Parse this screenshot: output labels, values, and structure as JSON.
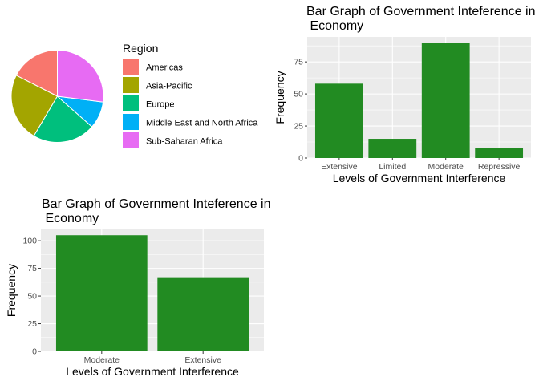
{
  "chart_data": [
    {
      "type": "pie",
      "legend_title": "Region",
      "legend_position": "right",
      "categories": [
        "Americas",
        "Asia-Pacific",
        "Europe",
        "Middle East and North Africa",
        "Sub-Saharan Africa"
      ],
      "values": [
        35,
        48,
        44,
        19,
        54
      ],
      "colors": [
        "#F8766D",
        "#A3A500",
        "#00BF7D",
        "#00B0F6",
        "#E76BF3"
      ]
    },
    {
      "type": "bar",
      "title": "Bar Graph of Government Inteference in\n Economy",
      "xlabel": "Levels of Government Interference",
      "ylabel": "Frequency",
      "categories": [
        "Extensive",
        "Limited",
        "Moderate",
        "Repressive"
      ],
      "values": [
        58,
        15,
        90,
        8
      ],
      "ylim": [
        0,
        94.5
      ],
      "yticks": [
        0,
        25,
        50,
        75
      ],
      "bar_color": "#228B22",
      "panel_color": "#EBEBEB",
      "grid": true
    },
    {
      "type": "bar",
      "title": "Bar Graph of Government Inteference in\n Economy",
      "xlabel": "Levels of Government Interference",
      "ylabel": "Frequency",
      "categories": [
        "Moderate",
        "Extensive"
      ],
      "values": [
        105,
        67
      ],
      "ylim": [
        0,
        110.25
      ],
      "yticks": [
        0,
        25,
        50,
        75,
        100
      ],
      "bar_color": "#228B22",
      "panel_color": "#EBEBEB",
      "grid": true
    }
  ]
}
